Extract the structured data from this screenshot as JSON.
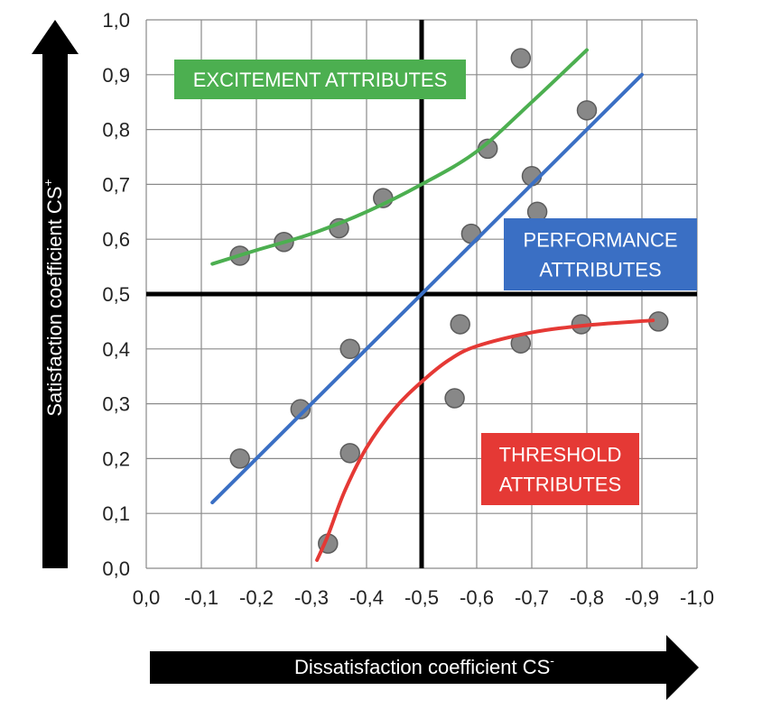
{
  "chart_data": {
    "type": "scatter",
    "title": "",
    "xlabel": "Dissatisfaction coefficient CS",
    "xlabel_superscript": "-",
    "ylabel": "Satisfaction coefficient CS",
    "ylabel_superscript": "+",
    "xlim": [
      0.0,
      -1.0
    ],
    "ylim": [
      0.0,
      1.0
    ],
    "grid": true,
    "x_ticks": [
      "0,0",
      "-0,1",
      "-0,2",
      "-0,3",
      "-0,4",
      "-0,5",
      "-0,6",
      "-0,7",
      "-0,8",
      "-0,9",
      "-1,0"
    ],
    "y_ticks": [
      "0,0",
      "0,1",
      "0,2",
      "0,3",
      "0,4",
      "0,5",
      "0,6",
      "0,7",
      "0,8",
      "0,9",
      "1,0"
    ],
    "reference_lines": {
      "x": -0.5,
      "y": 0.5
    },
    "points": [
      {
        "x": -0.17,
        "y": 0.57
      },
      {
        "x": -0.25,
        "y": 0.595
      },
      {
        "x": -0.35,
        "y": 0.62
      },
      {
        "x": -0.43,
        "y": 0.675
      },
      {
        "x": -0.62,
        "y": 0.765
      },
      {
        "x": -0.68,
        "y": 0.93
      },
      {
        "x": -0.7,
        "y": 0.715
      },
      {
        "x": -0.71,
        "y": 0.65
      },
      {
        "x": -0.8,
        "y": 0.835
      },
      {
        "x": -0.59,
        "y": 0.61
      },
      {
        "x": -0.17,
        "y": 0.2
      },
      {
        "x": -0.28,
        "y": 0.29
      },
      {
        "x": -0.37,
        "y": 0.4
      },
      {
        "x": -0.37,
        "y": 0.21
      },
      {
        "x": -0.33,
        "y": 0.045
      },
      {
        "x": -0.56,
        "y": 0.31
      },
      {
        "x": -0.57,
        "y": 0.445
      },
      {
        "x": -0.68,
        "y": 0.41
      },
      {
        "x": -0.79,
        "y": 0.445
      },
      {
        "x": -0.93,
        "y": 0.45
      }
    ],
    "series": [
      {
        "name": "EXCITEMENT ATTRIBUTES",
        "color": "#4caf50",
        "x": [
          -0.12,
          -0.2,
          -0.3,
          -0.4,
          -0.5,
          -0.6,
          -0.7,
          -0.8
        ],
        "y": [
          0.555,
          0.58,
          0.61,
          0.65,
          0.7,
          0.76,
          0.85,
          0.945
        ]
      },
      {
        "name": "PERFORMANCE ATTRIBUTES",
        "color": "#3a6fc4",
        "x": [
          -0.12,
          -0.9
        ],
        "y": [
          0.12,
          0.9
        ]
      },
      {
        "name": "THRESHOLD ATTRIBUTES",
        "color": "#e53935",
        "x": [
          -0.31,
          -0.33,
          -0.36,
          -0.4,
          -0.45,
          -0.5,
          -0.55,
          -0.6,
          -0.7,
          -0.8,
          -0.92
        ],
        "y": [
          0.015,
          0.06,
          0.14,
          0.22,
          0.29,
          0.34,
          0.38,
          0.405,
          0.43,
          0.443,
          0.452
        ]
      }
    ],
    "annotations": [
      {
        "text": "EXCITEMENT ATTRIBUTES",
        "lines": [
          "EXCITEMENT ATTRIBUTES"
        ],
        "color": "#4caf50"
      },
      {
        "text": "PERFORMANCE ATTRIBUTES",
        "lines": [
          "PERFORMANCE",
          "ATTRIBUTES"
        ],
        "color": "#3a6fc4"
      },
      {
        "text": "THRESHOLD ATTRIBUTES",
        "lines": [
          "THRESHOLD",
          "ATTRIBUTES"
        ],
        "color": "#e53935"
      }
    ]
  }
}
